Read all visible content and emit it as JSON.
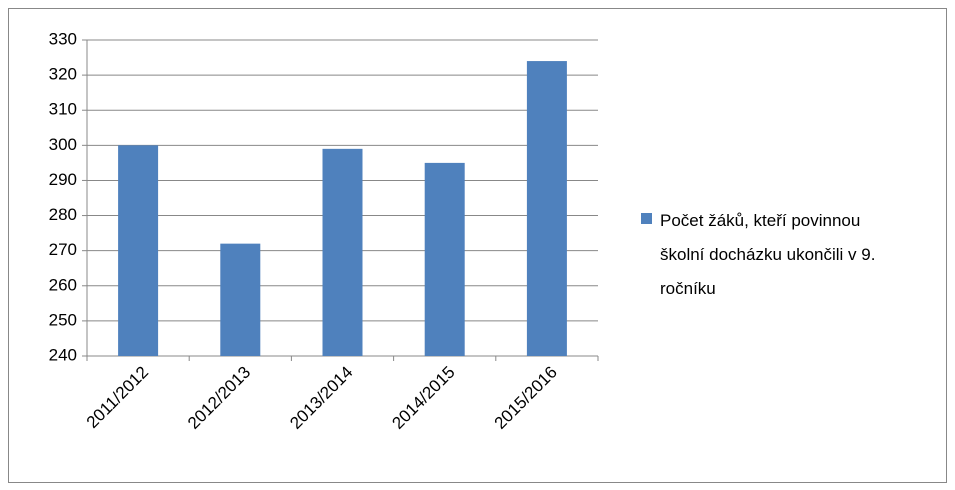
{
  "chart_data": {
    "type": "bar",
    "categories": [
      "2011/2012",
      "2012/2013",
      "2013/2014",
      "2014/2015",
      "2015/2016"
    ],
    "series": [
      {
        "name": "Počet žáků, kteří povinnou školní docházku ukončili v 9. ročníku",
        "color": "#4f81bd",
        "values": [
          300,
          272,
          299,
          295,
          324
        ]
      }
    ],
    "ylim": [
      240,
      330
    ],
    "yticks": [
      240,
      250,
      260,
      270,
      280,
      290,
      300,
      310,
      320,
      330
    ],
    "grid": true,
    "legend": "right"
  }
}
